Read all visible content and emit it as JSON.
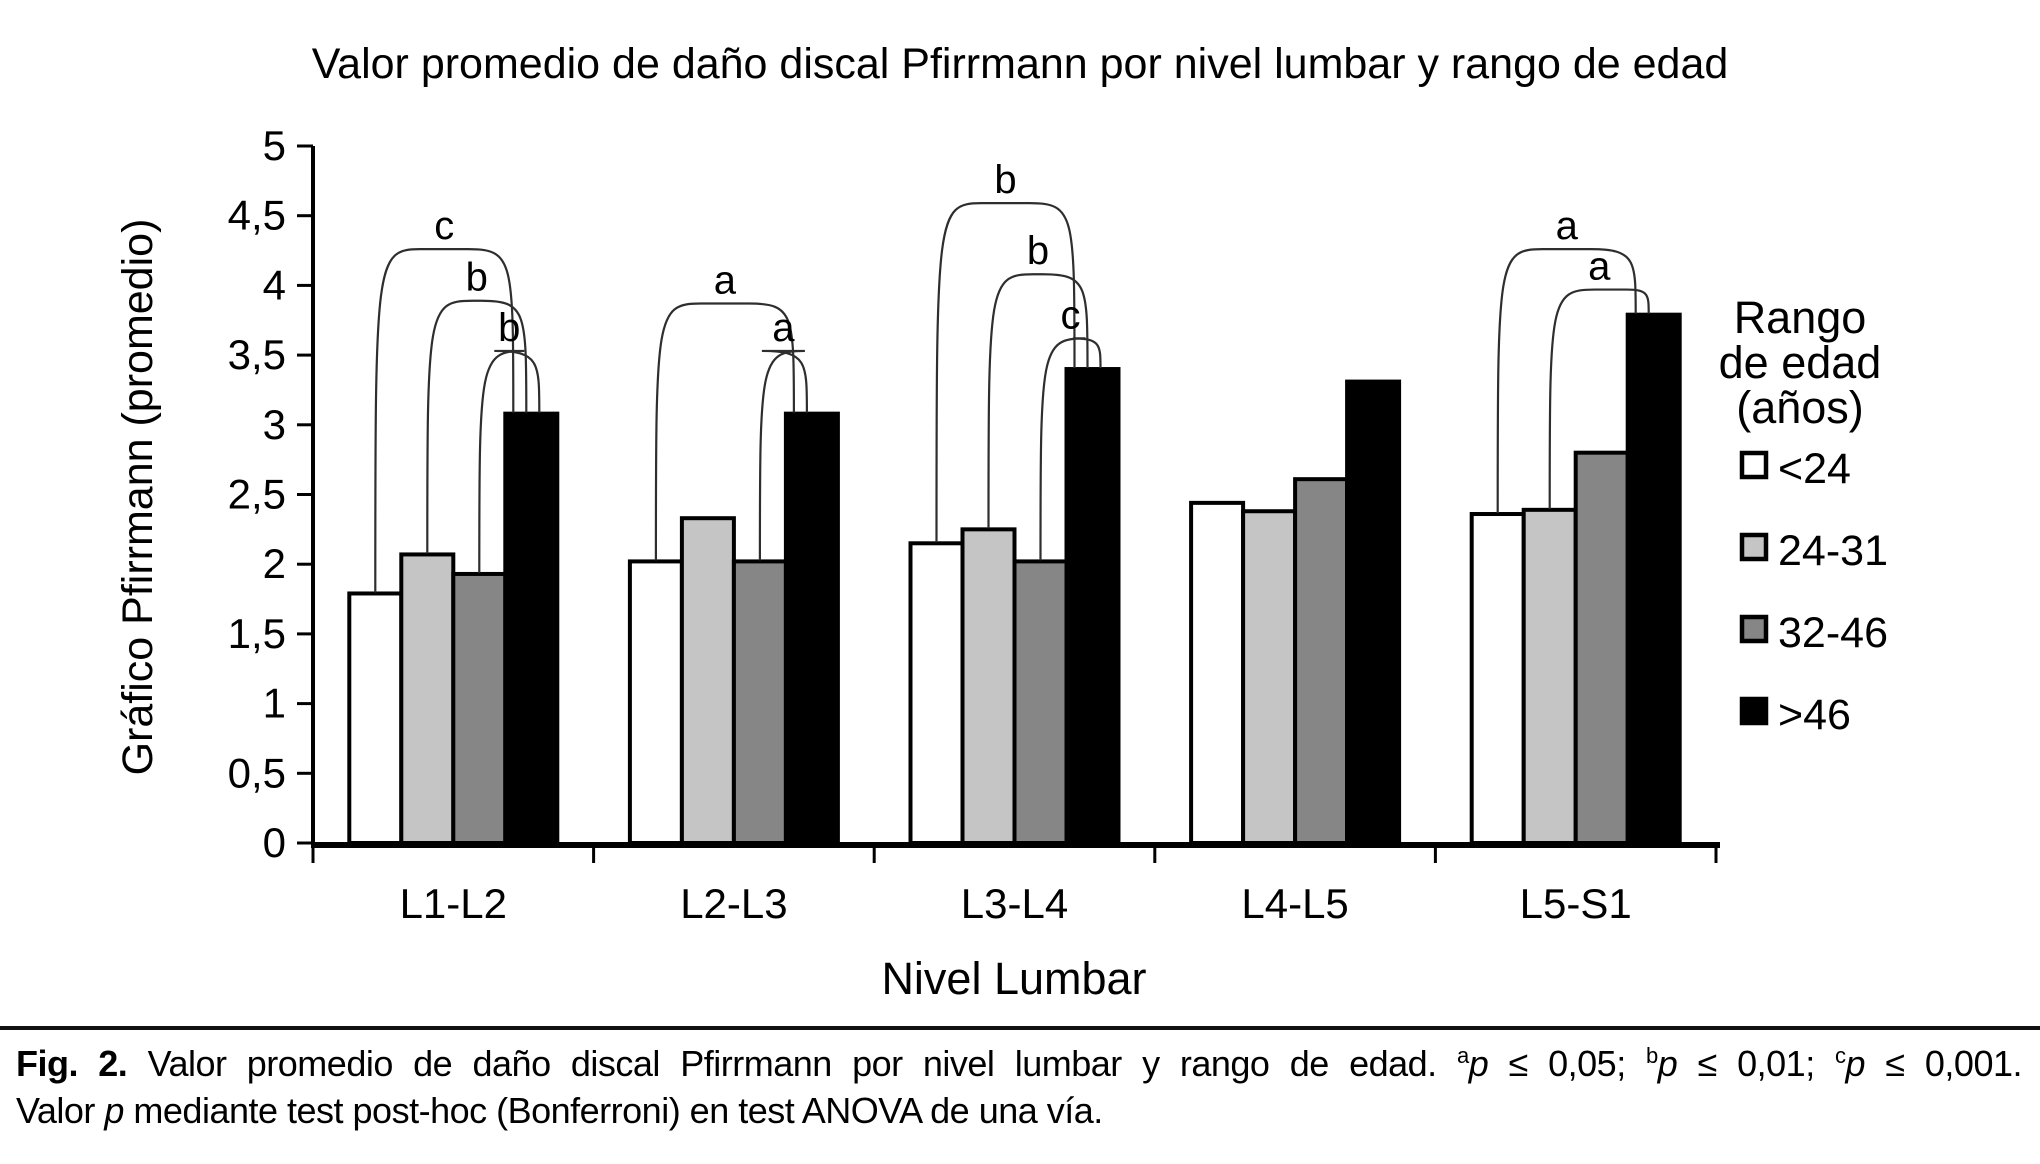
{
  "chart_data": {
    "type": "bar",
    "title": "Valor promedio de daño discal Pfirrmann por nivel lumbar y rango de edad",
    "xlabel": "Nivel Lumbar",
    "ylabel": "Gráfico Pfirrmann (promedio)",
    "categories": [
      "L1-L2",
      "L2-L3",
      "L3-L4",
      "L4-L5",
      "L5-S1"
    ],
    "series": [
      {
        "name": "<24",
        "color": "#ffffff",
        "values": [
          1.79,
          2.02,
          2.15,
          2.44,
          2.36
        ]
      },
      {
        "name": "24-31",
        "color": "#c5c5c5",
        "values": [
          2.07,
          2.33,
          2.25,
          2.38,
          2.39
        ]
      },
      {
        "name": "32-46",
        "color": "#868686",
        "values": [
          1.93,
          2.02,
          2.02,
          2.61,
          2.8
        ]
      },
      {
        "name": ">46",
        "color": "#000000",
        "values": [
          3.08,
          3.08,
          3.4,
          3.31,
          3.79
        ]
      }
    ],
    "ylim": [
      0,
      5
    ],
    "ytick_step": 0.5,
    "ytick_labels": [
      "0",
      "0,5",
      "1",
      "1,5",
      "2",
      "2,5",
      "3",
      "3,5",
      "4",
      "4,5",
      "5"
    ],
    "grid": false,
    "legend_position": "right",
    "legend_title_lines": [
      "Rango",
      "de edad",
      "(años)"
    ],
    "significance_brackets": [
      {
        "group": "L1-L2",
        "bar": "<24",
        "vs": ">46",
        "label": "c",
        "height": 4.26
      },
      {
        "group": "L1-L2",
        "bar": "24-31",
        "vs": ">46",
        "label": "b",
        "height": 3.89
      },
      {
        "group": "L1-L2",
        "bar": "32-46",
        "vs": ">46",
        "label": "b",
        "height": 3.53
      },
      {
        "group": "L2-L3",
        "bar": "<24",
        "vs": ">46",
        "label": "a",
        "height": 3.87
      },
      {
        "group": "L2-L3",
        "bar": "32-46",
        "vs": ">46",
        "label": "a",
        "height": 3.53
      },
      {
        "group": "L3-L4",
        "bar": "<24",
        "vs": ">46",
        "label": "b",
        "height": 4.59
      },
      {
        "group": "L3-L4",
        "bar": "24-31",
        "vs": ">46",
        "label": "b",
        "height": 4.08
      },
      {
        "group": "L3-L4",
        "bar": "32-46",
        "vs": ">46",
        "label": "c",
        "height": 3.62
      },
      {
        "group": "L5-S1",
        "bar": "<24",
        "vs": ">46",
        "label": "a",
        "height": 4.26
      },
      {
        "group": "L5-S1",
        "bar": "24-31",
        "vs": ">46",
        "label": "a",
        "height": 3.97
      }
    ]
  },
  "caption": {
    "label": "Fig. 2.",
    "main": " Valor promedio de daño discal Pfirrmann por nivel lumbar y rango de edad. ",
    "p_italic": "p",
    "sup_a": "a",
    "thr_a": " ≤ 0,05; ",
    "sup_b": "b",
    "thr_b": " ≤ 0,01; ",
    "sup_c": "c",
    "thr_c": " ≤ 0,001.",
    "line2_pre": "Valor ",
    "line2_post": " mediante test post-hoc (Bonferroni) en test ANOVA de una vía."
  }
}
